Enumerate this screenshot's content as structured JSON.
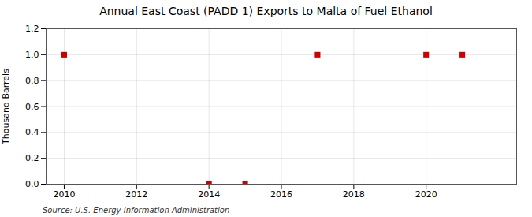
{
  "chart_data": {
    "type": "scatter",
    "title": "Annual East Coast (PADD 1) Exports to Malta of Fuel Ethanol",
    "ylabel": "Thousand Barrels",
    "source": "Source: U.S. Energy Information Administration",
    "x": [
      2010,
      2014,
      2015,
      2017,
      2020,
      2021
    ],
    "values": [
      1.0,
      0.0,
      0.0,
      1.0,
      1.0,
      1.0
    ],
    "color": "#cc0000",
    "marker": "square",
    "xlim": [
      2009.5,
      2022.5
    ],
    "xticks": [
      2010,
      2012,
      2014,
      2016,
      2018,
      2020
    ],
    "ylim": [
      0.0,
      1.2
    ],
    "yticks": [
      {
        "value": 0,
        "label": "0.0"
      },
      0.2,
      0.4,
      0.6,
      0.8,
      {
        "value": 1,
        "label": "1.0"
      },
      1.2
    ],
    "grid": true
  }
}
